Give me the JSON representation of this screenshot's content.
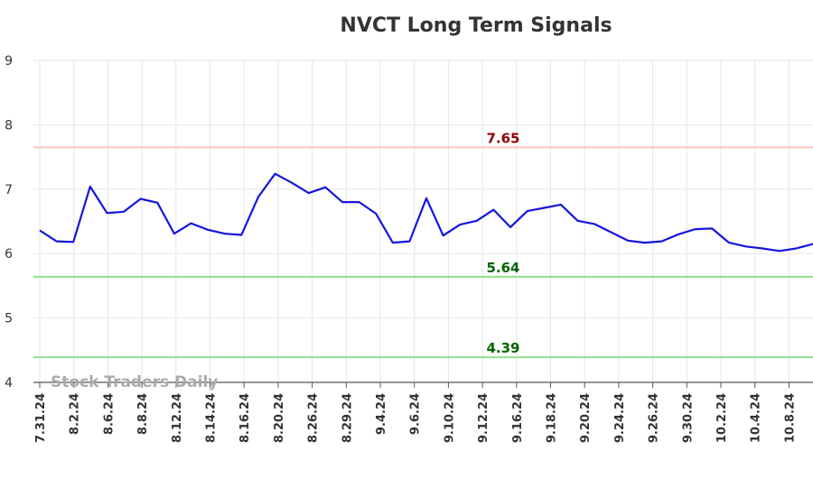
{
  "chart_data": {
    "type": "line",
    "title": "NVCT Long Term Signals",
    "watermark": "Stock Traders Daily",
    "ylim": [
      4,
      9
    ],
    "yticks": [
      "4",
      "5",
      "6",
      "7",
      "8",
      "9"
    ],
    "grid": true,
    "x_labels": [
      "7.31.24",
      "8.2.24",
      "8.6.24",
      "8.8.24",
      "8.12.24",
      "8.14.24",
      "8.16.24",
      "8.20.24",
      "8.26.24",
      "8.29.24",
      "9.4.24",
      "9.6.24",
      "9.10.24",
      "9.12.24",
      "9.16.24",
      "9.18.24",
      "9.20.24",
      "9.24.24",
      "9.26.24",
      "9.30.24",
      "10.2.24",
      "10.4.24",
      "10.8.24"
    ],
    "series": [
      {
        "color": "#1515e0",
        "values": [
          6.36,
          6.19,
          6.18,
          7.04,
          6.63,
          6.65,
          6.85,
          6.79,
          6.31,
          6.47,
          6.37,
          6.31,
          6.29,
          6.88,
          7.24,
          7.1,
          6.94,
          7.03,
          6.8,
          6.8,
          6.62,
          6.17,
          6.19,
          6.86,
          6.28,
          6.45,
          6.51,
          6.68,
          6.41,
          6.66,
          6.71,
          6.76,
          6.51,
          6.46,
          6.33,
          6.2,
          6.17,
          6.19,
          6.3,
          6.38,
          6.39,
          6.17,
          6.11,
          6.08,
          6.04,
          6.08,
          6.15
        ]
      }
    ],
    "reference_lines": [
      {
        "label": "7.65",
        "value": 7.65,
        "line_color": "#f7c6c6",
        "text_color": "#8b0000"
      },
      {
        "label": "5.64",
        "value": 5.64,
        "line_color": "#8fe08f",
        "text_color": "#006400"
      },
      {
        "label": "4.39",
        "value": 4.39,
        "line_color": "#8fe08f",
        "text_color": "#006400"
      }
    ]
  }
}
